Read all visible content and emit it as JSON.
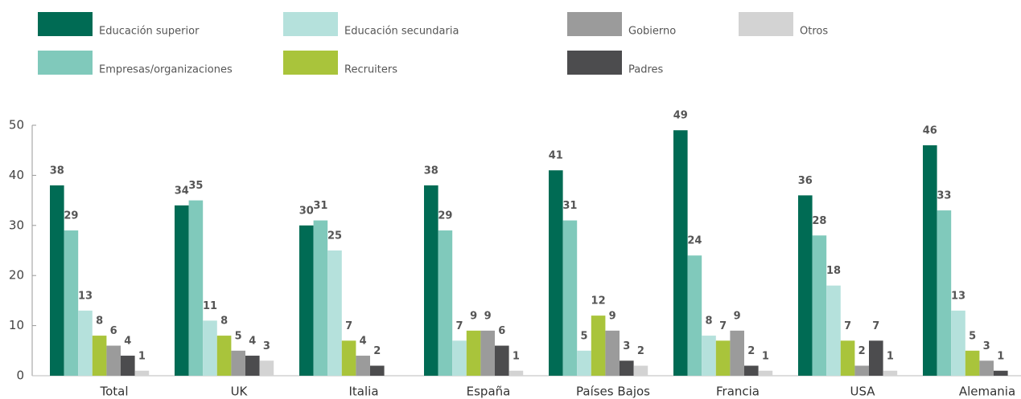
{
  "chart_data": {
    "type": "bar",
    "categories": [
      "Total",
      "UK",
      "Italia",
      "España",
      "Países Bajos",
      "Francia",
      "USA",
      "Alemania"
    ],
    "series": [
      {
        "name": "Educación superior",
        "color": "#006b54",
        "values": [
          38,
          34,
          30,
          38,
          41,
          49,
          36,
          46
        ]
      },
      {
        "name": "Empresas/organizaciones",
        "color": "#80c9bb",
        "values": [
          29,
          35,
          31,
          29,
          31,
          24,
          28,
          33
        ]
      },
      {
        "name": "Educación secundaria",
        "color": "#b5e1dc",
        "values": [
          13,
          11,
          25,
          7,
          5,
          8,
          18,
          13
        ]
      },
      {
        "name": "Recruiters",
        "color": "#a9c43b",
        "values": [
          8,
          8,
          7,
          9,
          12,
          7,
          7,
          5
        ]
      },
      {
        "name": "Gobierno",
        "color": "#9b9b9b",
        "values": [
          6,
          5,
          4,
          9,
          9,
          9,
          2,
          3
        ]
      },
      {
        "name": "Padres",
        "color": "#4c4c4e",
        "values": [
          4,
          4,
          2,
          6,
          3,
          2,
          7,
          1
        ]
      },
      {
        "name": "Otros",
        "color": "#d3d3d3",
        "values": [
          1,
          3,
          null,
          1,
          2,
          1,
          1,
          null
        ]
      }
    ],
    "ylim": [
      0,
      50
    ],
    "yticks": [
      0,
      10,
      20,
      30,
      40,
      50
    ]
  }
}
